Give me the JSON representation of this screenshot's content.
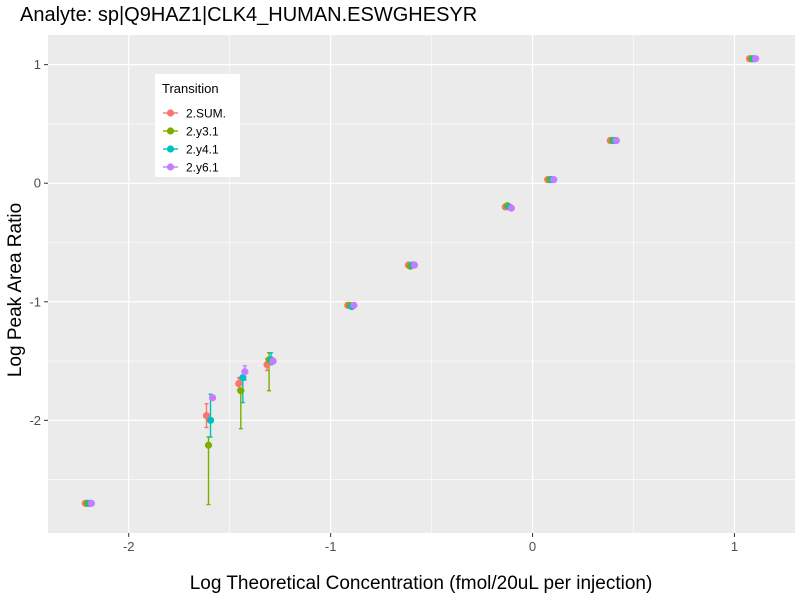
{
  "chart_data": {
    "type": "scatter",
    "title": "Analyte: sp|Q9HAZ1|CLK4_HUMAN.ESWGHESYR",
    "xlabel": "Log Theoretical Concentration (fmol/20uL per injection)",
    "ylabel": "Log Peak Area Ratio",
    "xlim": [
      -2.4,
      1.3
    ],
    "ylim": [
      -2.95,
      1.25
    ],
    "x_ticks": [
      -2,
      -1,
      0,
      1
    ],
    "x_tick_labels": [
      "-2",
      "-1",
      "0",
      "1"
    ],
    "y_ticks": [
      -2,
      -1,
      0,
      1
    ],
    "y_tick_labels": [
      "-2",
      "-1",
      "0",
      "1"
    ],
    "grid": true,
    "legend": {
      "title": "Transition",
      "position": "top-left"
    },
    "x": [
      -2.2,
      -1.6,
      -1.44,
      -1.3,
      -0.9,
      -0.6,
      -0.12,
      0.09,
      0.4,
      1.09
    ],
    "series": [
      {
        "name": "2.SUM.",
        "color": "#F8766D",
        "dodge": -0.015,
        "values": [
          -2.7,
          -1.96,
          -1.69,
          -1.53,
          -1.03,
          -0.69,
          -0.2,
          0.03,
          0.36,
          1.05
        ],
        "error": [
          [
            -2.7,
            -2.7
          ],
          [
            -2.06,
            -1.86
          ],
          [
            -1.74,
            -1.64
          ],
          [
            -1.58,
            -1.48
          ],
          [
            -1.03,
            -1.03
          ],
          [
            -0.69,
            -0.69
          ],
          [
            -0.2,
            -0.2
          ],
          [
            0.03,
            0.03
          ],
          [
            0.36,
            0.36
          ],
          [
            1.05,
            1.05
          ]
        ]
      },
      {
        "name": "2.y3.1",
        "color": "#7CAE00",
        "dodge": -0.005,
        "values": [
          -2.7,
          -2.21,
          -1.75,
          -1.49,
          -1.03,
          -0.7,
          -0.19,
          0.03,
          0.36,
          1.05
        ],
        "error": [
          [
            -2.7,
            -2.7
          ],
          [
            -2.71,
            -2.14
          ],
          [
            -2.07,
            -1.74
          ],
          [
            -1.75,
            -1.43
          ],
          [
            -1.03,
            -1.03
          ],
          [
            -0.7,
            -0.7
          ],
          [
            -0.19,
            -0.19
          ],
          [
            0.03,
            0.03
          ],
          [
            0.36,
            0.36
          ],
          [
            1.05,
            1.05
          ]
        ]
      },
      {
        "name": "2.y4.1",
        "color": "#00BFC4",
        "dodge": 0.005,
        "values": [
          -2.7,
          -2.0,
          -1.64,
          -1.49,
          -1.04,
          -0.69,
          -0.2,
          0.03,
          0.36,
          1.05
        ],
        "error": [
          [
            -2.7,
            -2.7
          ],
          [
            -2.14,
            -1.78
          ],
          [
            -1.85,
            -1.63
          ],
          [
            -1.53,
            -1.43
          ],
          [
            -1.04,
            -1.04
          ],
          [
            -0.69,
            -0.69
          ],
          [
            -0.2,
            -0.2
          ],
          [
            0.03,
            0.03
          ],
          [
            0.36,
            0.36
          ],
          [
            1.05,
            1.05
          ]
        ]
      },
      {
        "name": "2.y6.1",
        "color": "#C77CFF",
        "dodge": 0.015,
        "values": [
          -2.7,
          -1.81,
          -1.59,
          -1.5,
          -1.03,
          -0.69,
          -0.21,
          0.03,
          0.36,
          1.05
        ],
        "error": [
          [
            -2.7,
            -2.7
          ],
          [
            -1.82,
            -1.79
          ],
          [
            -1.66,
            -1.54
          ],
          [
            -1.52,
            -1.49
          ],
          [
            -1.03,
            -1.03
          ],
          [
            -0.69,
            -0.69
          ],
          [
            -0.21,
            -0.21
          ],
          [
            0.03,
            0.03
          ],
          [
            0.36,
            0.36
          ],
          [
            1.05,
            1.05
          ]
        ]
      }
    ]
  }
}
